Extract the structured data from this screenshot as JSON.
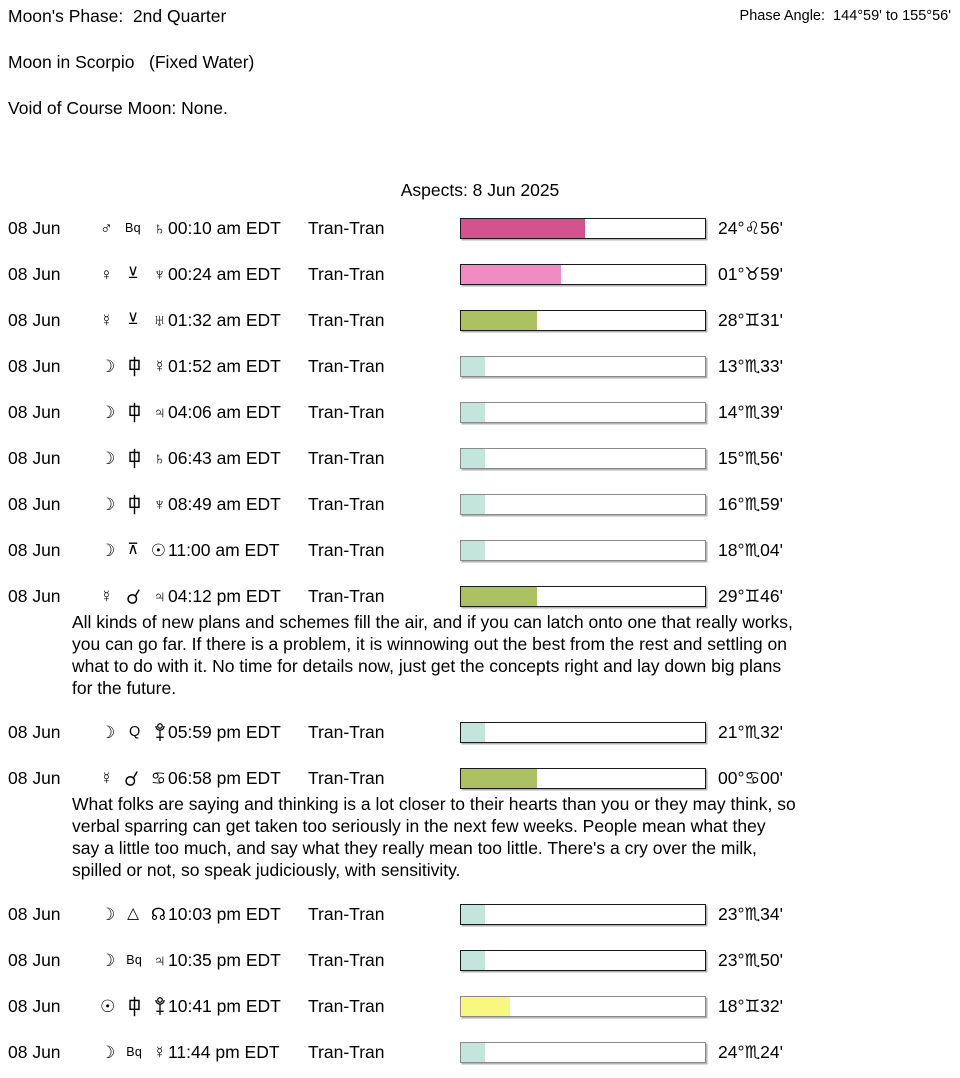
{
  "header": {
    "moon_phase": "Moon's Phase:  2nd Quarter",
    "moon_sign": "Moon in Scorpio   (Fixed Water)",
    "void_of_course": "Void of Course Moon: None.",
    "phase_angle": "Phase Angle:  144°59' to 155°56'"
  },
  "title": "Aspects: 8 Jun 2025",
  "colors": {
    "bar_magenta": "#d4538f",
    "bar_pink": "#f08cc2",
    "bar_olive": "#adc163",
    "bar_teal": "#c4e5dc",
    "bar_yellow": "#f9f87e",
    "border_dark": "#1a1a1a",
    "border_gray": "#8a8a8a",
    "bar_shadow": "#b3b3b3"
  },
  "glyph_map": {
    "moon": {
      "char": "☽"
    },
    "sun": {
      "char": "☉"
    },
    "mercury": {
      "char": "☿"
    },
    "venus": {
      "char": "♀"
    },
    "mars": {
      "char": "♂"
    },
    "jupiter": {
      "char": "♃"
    },
    "saturn": {
      "char": "♄"
    },
    "uranus": {
      "char": "♅"
    },
    "neptune": {
      "char": "♆"
    },
    "pluto": {
      "svg": "g-pluto",
      "cls": "plu"
    },
    "cancer-sign": {
      "char": "♋"
    },
    "north-node": {
      "char": "☊"
    },
    "conjunction": {
      "svg": "g-conj",
      "cls": "conj"
    },
    "semisextile": {
      "char": "⊻",
      "cls": "asp"
    },
    "quincunx": {
      "char": "⊼",
      "cls": "asp"
    },
    "trine": {
      "char": "△",
      "cls": "asp"
    },
    "sesquiquadrate": {
      "svg": "g-sesq",
      "cls": "sesq"
    },
    "quintile": {
      "char": "Q",
      "cls": "qtext"
    },
    "biquintile": {
      "char": "Bq",
      "cls": "bqtext"
    }
  },
  "aspects": [
    {
      "date": "08 Jun",
      "p1": "mars",
      "aspect": "biquintile",
      "p2": "saturn",
      "time": "00:10 am EDT",
      "type": "Tran-Tran",
      "bar": {
        "pct": 51,
        "color": "#d4538f",
        "border": "#1a1a1a"
      },
      "position": "24°♌56'"
    },
    {
      "date": "08 Jun",
      "p1": "venus",
      "aspect": "semisextile",
      "p2": "neptune",
      "time": "00:24 am EDT",
      "type": "Tran-Tran",
      "bar": {
        "pct": 41,
        "color": "#f08cc2",
        "border": "#1a1a1a"
      },
      "position": "01°♉59'"
    },
    {
      "date": "08 Jun",
      "p1": "mercury",
      "aspect": "semisextile",
      "p2": "uranus",
      "time": "01:32 am EDT",
      "type": "Tran-Tran",
      "bar": {
        "pct": 31,
        "color": "#adc163",
        "border": "#1a1a1a"
      },
      "position": "28°♊31'"
    },
    {
      "date": "08 Jun",
      "p1": "moon",
      "aspect": "sesquiquadrate",
      "p2": "mercury",
      "time": "01:52 am EDT",
      "type": "Tran-Tran",
      "bar": {
        "pct": 10,
        "color": "#c4e5dc",
        "border": "#8a8a8a"
      },
      "position": "13°♏33'"
    },
    {
      "date": "08 Jun",
      "p1": "moon",
      "aspect": "sesquiquadrate",
      "p2": "jupiter",
      "time": "04:06 am EDT",
      "type": "Tran-Tran",
      "bar": {
        "pct": 10,
        "color": "#c4e5dc",
        "border": "#8a8a8a"
      },
      "position": "14°♏39'"
    },
    {
      "date": "08 Jun",
      "p1": "moon",
      "aspect": "sesquiquadrate",
      "p2": "saturn",
      "time": "06:43 am EDT",
      "type": "Tran-Tran",
      "bar": {
        "pct": 10,
        "color": "#c4e5dc",
        "border": "#8a8a8a"
      },
      "position": "15°♏56'"
    },
    {
      "date": "08 Jun",
      "p1": "moon",
      "aspect": "sesquiquadrate",
      "p2": "neptune",
      "time": "08:49 am EDT",
      "type": "Tran-Tran",
      "bar": {
        "pct": 10,
        "color": "#c4e5dc",
        "border": "#8a8a8a"
      },
      "position": "16°♏59'"
    },
    {
      "date": "08 Jun",
      "p1": "moon",
      "aspect": "quincunx",
      "p2": "sun",
      "time": "11:00 am EDT",
      "type": "Tran-Tran",
      "bar": {
        "pct": 10,
        "color": "#c4e5dc",
        "border": "#8a8a8a"
      },
      "position": "18°♏04'"
    },
    {
      "date": "08 Jun",
      "p1": "mercury",
      "aspect": "conjunction",
      "p2": "jupiter",
      "time": "04:12 pm EDT",
      "type": "Tran-Tran",
      "bar": {
        "pct": 31,
        "color": "#adc163",
        "border": "#1a1a1a"
      },
      "position": "29°♊46'",
      "note": [
        "All kinds of new plans and schemes fill the air, and if you can latch onto one that really works,",
        "you can go far. If there is a problem, it is winnowing out the best from the rest and settling on",
        "what to do with it. No time for details now, just get the concepts right and lay down big plans",
        "for the future."
      ]
    },
    {
      "date": "08 Jun",
      "p1": "moon",
      "aspect": "quintile",
      "p2": "pluto",
      "time": "05:59 pm EDT",
      "type": "Tran-Tran",
      "bar": {
        "pct": 10,
        "color": "#c4e5dc",
        "border": "#1a1a1a"
      },
      "position": "21°♏32'"
    },
    {
      "date": "08 Jun",
      "p1": "mercury",
      "aspect": "conjunction",
      "p2": "cancer-sign",
      "time": "06:58 pm EDT",
      "type": "Tran-Tran",
      "bar": {
        "pct": 31,
        "color": "#adc163",
        "border": "#1a1a1a"
      },
      "position": "00°♋00'",
      "note": [
        "What folks are saying and thinking is a lot closer to their hearts than you or they may think, so",
        "verbal sparring can get taken too seriously in the next few weeks. People mean what they",
        "say a little too much, and say what they really mean too little. There's a cry over the milk,",
        "spilled or not, so speak judiciously, with sensitivity."
      ]
    },
    {
      "date": "08 Jun",
      "p1": "moon",
      "aspect": "trine",
      "p2": "north-node",
      "time": "10:03 pm EDT",
      "type": "Tran-Tran",
      "bar": {
        "pct": 10,
        "color": "#c4e5dc",
        "border": "#1a1a1a"
      },
      "position": "23°♏34'"
    },
    {
      "date": "08 Jun",
      "p1": "moon",
      "aspect": "biquintile",
      "p2": "jupiter",
      "time": "10:35 pm EDT",
      "type": "Tran-Tran",
      "bar": {
        "pct": 10,
        "color": "#c4e5dc",
        "border": "#1a1a1a"
      },
      "position": "23°♏50'"
    },
    {
      "date": "08 Jun",
      "p1": "sun",
      "aspect": "sesquiquadrate",
      "p2": "pluto",
      "time": "10:41 pm EDT",
      "type": "Tran-Tran",
      "bar": {
        "pct": 20,
        "color": "#f9f87e",
        "border": "#8a8a8a"
      },
      "position": "18°♊32'"
    },
    {
      "date": "08 Jun",
      "p1": "moon",
      "aspect": "biquintile",
      "p2": "mercury",
      "time": "11:44 pm EDT",
      "type": "Tran-Tran",
      "bar": {
        "pct": 10,
        "color": "#c4e5dc",
        "border": "#8a8a8a"
      },
      "position": "24°♏24'"
    }
  ]
}
